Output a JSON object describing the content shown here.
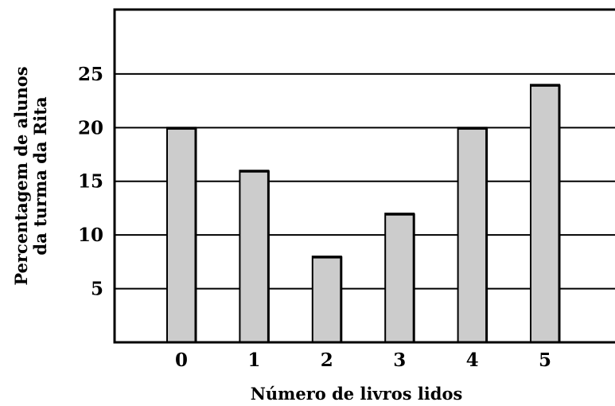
{
  "chart_data": {
    "type": "bar",
    "categories": [
      "0",
      "1",
      "2",
      "3",
      "4",
      "5"
    ],
    "values": [
      20,
      16,
      8,
      12,
      20,
      24
    ],
    "title": "",
    "xlabel": "Número de livros lidos",
    "ylabel_lines": [
      "Percentagem de alunos",
      "da turma da Rita"
    ],
    "ylim": [
      0,
      31
    ],
    "yticks": [
      5,
      10,
      15,
      20,
      25
    ],
    "ytick_labels": [
      "5",
      "10",
      "15",
      "20",
      "25"
    ],
    "grid": "horizontal",
    "bar_color": "#cccccc",
    "bar_edge_color": "#000000"
  }
}
